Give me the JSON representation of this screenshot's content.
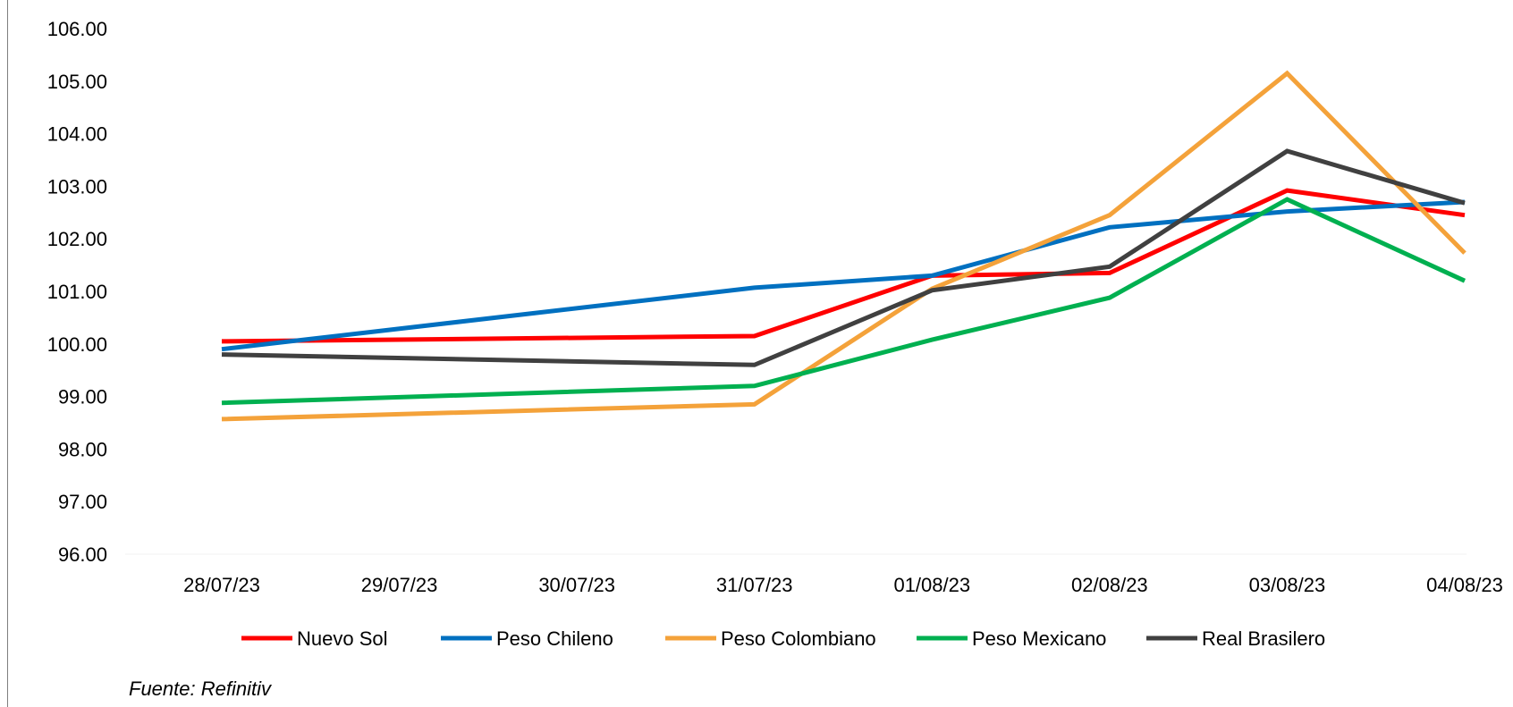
{
  "chart_data": {
    "type": "line",
    "categories": [
      "28/07/23",
      "29/07/23",
      "30/07/23",
      "31/07/23",
      "01/08/23",
      "02/08/23",
      "03/08/23",
      "04/08/23"
    ],
    "ylim": [
      96,
      106
    ],
    "yticks": [
      "96.00",
      "97.00",
      "98.00",
      "99.00",
      "100.00",
      "101.00",
      "102.00",
      "103.00",
      "104.00",
      "105.00",
      "106.00"
    ],
    "grid": false,
    "legend_position": "bottom",
    "series": [
      {
        "name": "Nuevo Sol",
        "color": "#ff0000",
        "points": [
          [
            0,
            100.05
          ],
          [
            3,
            100.15
          ],
          [
            4,
            101.3
          ],
          [
            5,
            101.35
          ],
          [
            6,
            102.92
          ],
          [
            7,
            102.45
          ]
        ]
      },
      {
        "name": "Peso Chileno",
        "color": "#0070c0",
        "points": [
          [
            0,
            99.9
          ],
          [
            3,
            101.07
          ],
          [
            4,
            101.3
          ],
          [
            5,
            102.22
          ],
          [
            6,
            102.52
          ],
          [
            7,
            102.7
          ]
        ]
      },
      {
        "name": "Peso Colombiano",
        "color": "#f4a23a",
        "points": [
          [
            0,
            98.57
          ],
          [
            3,
            98.85
          ],
          [
            4,
            101.05
          ],
          [
            5,
            102.45
          ],
          [
            6,
            105.15
          ],
          [
            7,
            101.73
          ]
        ]
      },
      {
        "name": "Peso Mexicano",
        "color": "#00b050",
        "points": [
          [
            0,
            98.88
          ],
          [
            3,
            99.2
          ],
          [
            4,
            100.08
          ],
          [
            5,
            100.88
          ],
          [
            6,
            102.75
          ],
          [
            7,
            101.2
          ]
        ]
      },
      {
        "name": "Real Brasilero",
        "color": "#404040",
        "points": [
          [
            0,
            99.8
          ],
          [
            3,
            99.6
          ],
          [
            4,
            101.02
          ],
          [
            5,
            101.47
          ],
          [
            6,
            103.67
          ],
          [
            7,
            102.68
          ]
        ]
      }
    ]
  },
  "source_note": "Fuente: Refinitiv"
}
